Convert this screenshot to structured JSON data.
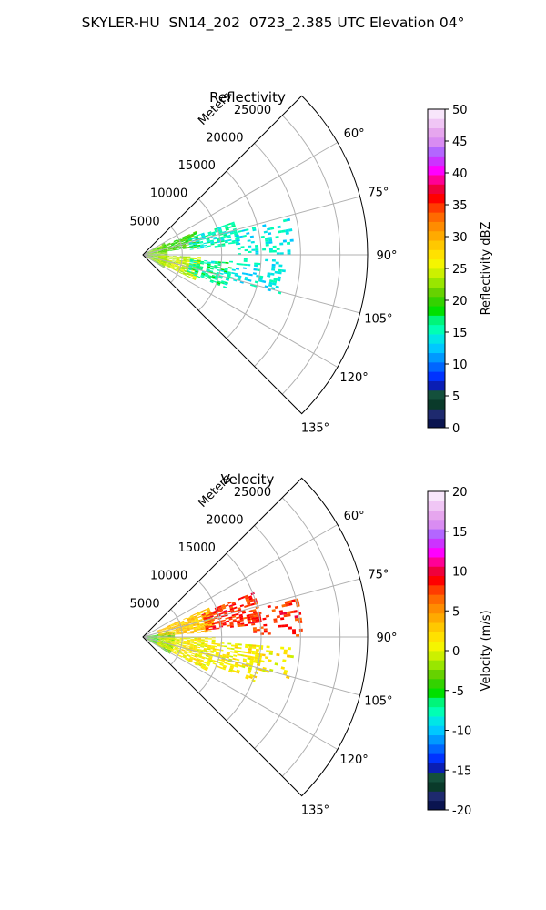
{
  "title": "SKYLER-HU  SN14_202  0723_2.385 UTC Elevation 04°",
  "chart_data": [
    {
      "type": "polar-sector",
      "title": "Reflectivity",
      "range_label": "Meters",
      "range_ticks": [
        5000,
        10000,
        15000,
        20000,
        25000
      ],
      "rmax": 28500,
      "theta_range_deg": [
        45,
        135
      ],
      "theta_ticks": [
        "60°",
        "75°",
        "90°",
        "105°",
        "120°",
        "135°"
      ],
      "colorbar": {
        "label": "Reflectivity dBZ",
        "vmin": 0,
        "vmax": 50,
        "ticks": [
          0,
          5,
          10,
          15,
          20,
          25,
          30,
          35,
          40,
          45,
          50
        ],
        "colors": [
          "#0a1450",
          "#1e2a6e",
          "#0a3a2a",
          "#14503c",
          "#0a1eb4",
          "#0033ff",
          "#0066ff",
          "#0099ff",
          "#00c8ff",
          "#00e6e6",
          "#00ffb4",
          "#00f57a",
          "#00e000",
          "#33d200",
          "#66d200",
          "#99e600",
          "#ccf000",
          "#f5f500",
          "#ffe100",
          "#ffc800",
          "#ffaa00",
          "#ff8c00",
          "#ff6a00",
          "#ff3c00",
          "#ff0000",
          "#f0003c",
          "#ff0096",
          "#ff00ff",
          "#cc33ff",
          "#b366ff",
          "#d98cf2",
          "#e6a6ee",
          "#f0c6f5",
          "#f8e6fb"
        ]
      },
      "field": [
        {
          "r0": 0,
          "r1": 3000,
          "t0": 60,
          "t1": 122,
          "value": 22,
          "density": 0.9
        },
        {
          "r0": 2000,
          "r1": 7000,
          "t0": 66,
          "t1": 82,
          "value": 20,
          "density": 0.75
        },
        {
          "r0": 2000,
          "r1": 7000,
          "t0": 92,
          "t1": 116,
          "value": 24,
          "density": 0.8
        },
        {
          "r0": 6000,
          "r1": 12000,
          "t0": 70,
          "t1": 84,
          "value": 15,
          "density": 0.6
        },
        {
          "r0": 6000,
          "r1": 11000,
          "t0": 95,
          "t1": 112,
          "value": 16,
          "density": 0.6
        },
        {
          "r0": 12000,
          "r1": 19000,
          "t0": 76,
          "t1": 90,
          "value": 14,
          "density": 0.3
        },
        {
          "r0": 11000,
          "r1": 18000,
          "t0": 92,
          "t1": 106,
          "value": 14,
          "density": 0.3
        }
      ]
    },
    {
      "type": "polar-sector",
      "title": "Velocity",
      "range_label": "Meters",
      "range_ticks": [
        5000,
        10000,
        15000,
        20000,
        25000
      ],
      "rmax": 28500,
      "theta_range_deg": [
        45,
        135
      ],
      "theta_ticks": [
        "60°",
        "75°",
        "90°",
        "105°",
        "120°",
        "135°"
      ],
      "colorbar": {
        "label": "Velocity (m/s)",
        "vmin": -20,
        "vmax": 20,
        "ticks": [
          -20,
          -15,
          -10,
          -5,
          0,
          5,
          10,
          15,
          20
        ],
        "colors": [
          "#0a1450",
          "#1e2a6e",
          "#0a3a2a",
          "#14503c",
          "#0a1eb4",
          "#0033ff",
          "#0066ff",
          "#0099ff",
          "#00c8ff",
          "#00e6e6",
          "#00ffb4",
          "#00f57a",
          "#00e000",
          "#33d200",
          "#66d200",
          "#99e600",
          "#ccf000",
          "#f5f500",
          "#ffe100",
          "#ffc800",
          "#ffaa00",
          "#ff8c00",
          "#ff6a00",
          "#ff3c00",
          "#ff0000",
          "#f0003c",
          "#ff0096",
          "#ff00ff",
          "#cc33ff",
          "#b366ff",
          "#d98cf2",
          "#e6a6ee",
          "#f0c6f5",
          "#f8e6fb"
        ]
      },
      "field": [
        {
          "r0": 0,
          "r1": 4000,
          "t0": 80,
          "t1": 122,
          "value": -4,
          "density": 0.85
        },
        {
          "r0": 2000,
          "r1": 9000,
          "t0": 66,
          "t1": 86,
          "value": 3,
          "density": 0.8
        },
        {
          "r0": 2000,
          "r1": 9000,
          "t0": 90,
          "t1": 118,
          "value": 1,
          "density": 0.75
        },
        {
          "r0": 8000,
          "r1": 15000,
          "t0": 68,
          "t1": 84,
          "value": 8,
          "density": 0.6
        },
        {
          "r0": 9000,
          "r1": 15000,
          "t0": 94,
          "t1": 112,
          "value": 1,
          "density": 0.45
        },
        {
          "r0": 14000,
          "r1": 20000,
          "t0": 76,
          "t1": 90,
          "value": 8,
          "density": 0.25
        },
        {
          "r0": 13000,
          "r1": 19000,
          "t0": 94,
          "t1": 106,
          "value": 1,
          "density": 0.25
        }
      ]
    }
  ]
}
